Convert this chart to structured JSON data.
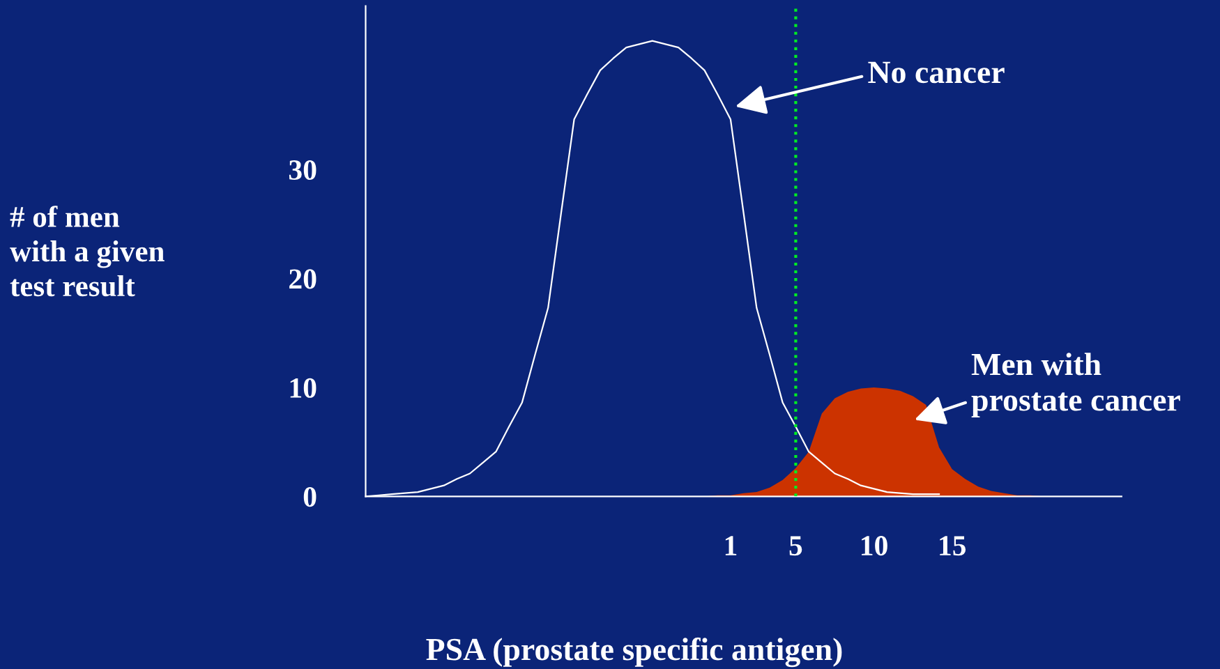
{
  "chart_data": {
    "type": "line",
    "ylabel": "# of men\nwith a given\ntest result",
    "xlabel": "PSA (prostate specific antigen)",
    "categories": [
      null,
      null,
      null,
      null,
      null,
      null,
      null,
      null,
      null,
      null,
      null,
      null,
      null,
      null,
      null,
      null,
      null,
      null,
      null,
      null,
      null,
      null,
      null,
      null,
      null,
      null,
      null,
      null,
      "1",
      null,
      null,
      null,
      null,
      "5",
      null,
      null,
      null,
      null,
      null,
      "10",
      null,
      null,
      null,
      null,
      null,
      "15",
      null,
      null,
      null,
      null,
      null,
      null,
      null,
      null,
      null,
      null,
      null,
      null,
      null
    ],
    "ylim": [
      0,
      45
    ],
    "yticks": [
      0,
      10,
      20,
      30
    ],
    "series": [
      {
        "type": "area",
        "color": "#cc3300",
        "values": [
          null,
          null,
          null,
          null,
          null,
          null,
          null,
          null,
          null,
          null,
          null,
          null,
          null,
          null,
          null,
          null,
          null,
          null,
          null,
          null,
          null,
          null,
          null,
          null,
          null,
          null,
          0,
          0.1,
          0.1,
          0.3,
          0.4,
          0.8,
          1.5,
          2.6,
          4.1,
          7.6,
          9.0,
          9.6,
          9.9,
          10.0,
          9.9,
          9.7,
          9.2,
          8.4,
          4.5,
          2.5,
          1.6,
          0.9,
          0.5,
          0.3,
          0.1,
          0.1,
          0,
          0,
          0,
          0,
          0,
          0,
          0
        ]
      },
      {
        "color": "#ffffff",
        "values": [
          0,
          0.1,
          0.2,
          0.3,
          0.4,
          0.7,
          1.0,
          1.6,
          2.1,
          3.1,
          4.1,
          6.4,
          8.6,
          13.0,
          17.3,
          26.0,
          34.6,
          36.9,
          39.1,
          40.2,
          41.2,
          41.5,
          41.8,
          41.5,
          41.2,
          40.2,
          39.1,
          36.9,
          34.6,
          26.0,
          17.3,
          13.0,
          8.6,
          6.4,
          4.1,
          3.1,
          2.1,
          1.6,
          1.0,
          0.7,
          0.4,
          0.3,
          0.2,
          0.2,
          0.2,
          null,
          null,
          null,
          null,
          null,
          null,
          null,
          null,
          null,
          null,
          null,
          null,
          null,
          null
        ]
      }
    ],
    "ref_lines": [
      {
        "axis": "x",
        "value": "5",
        "color": "#00ee22",
        "line_style": "dotted"
      }
    ],
    "annotations": [
      "No cancer",
      "Men with\nprostate cancer"
    ],
    "legend": false,
    "grid": false
  }
}
